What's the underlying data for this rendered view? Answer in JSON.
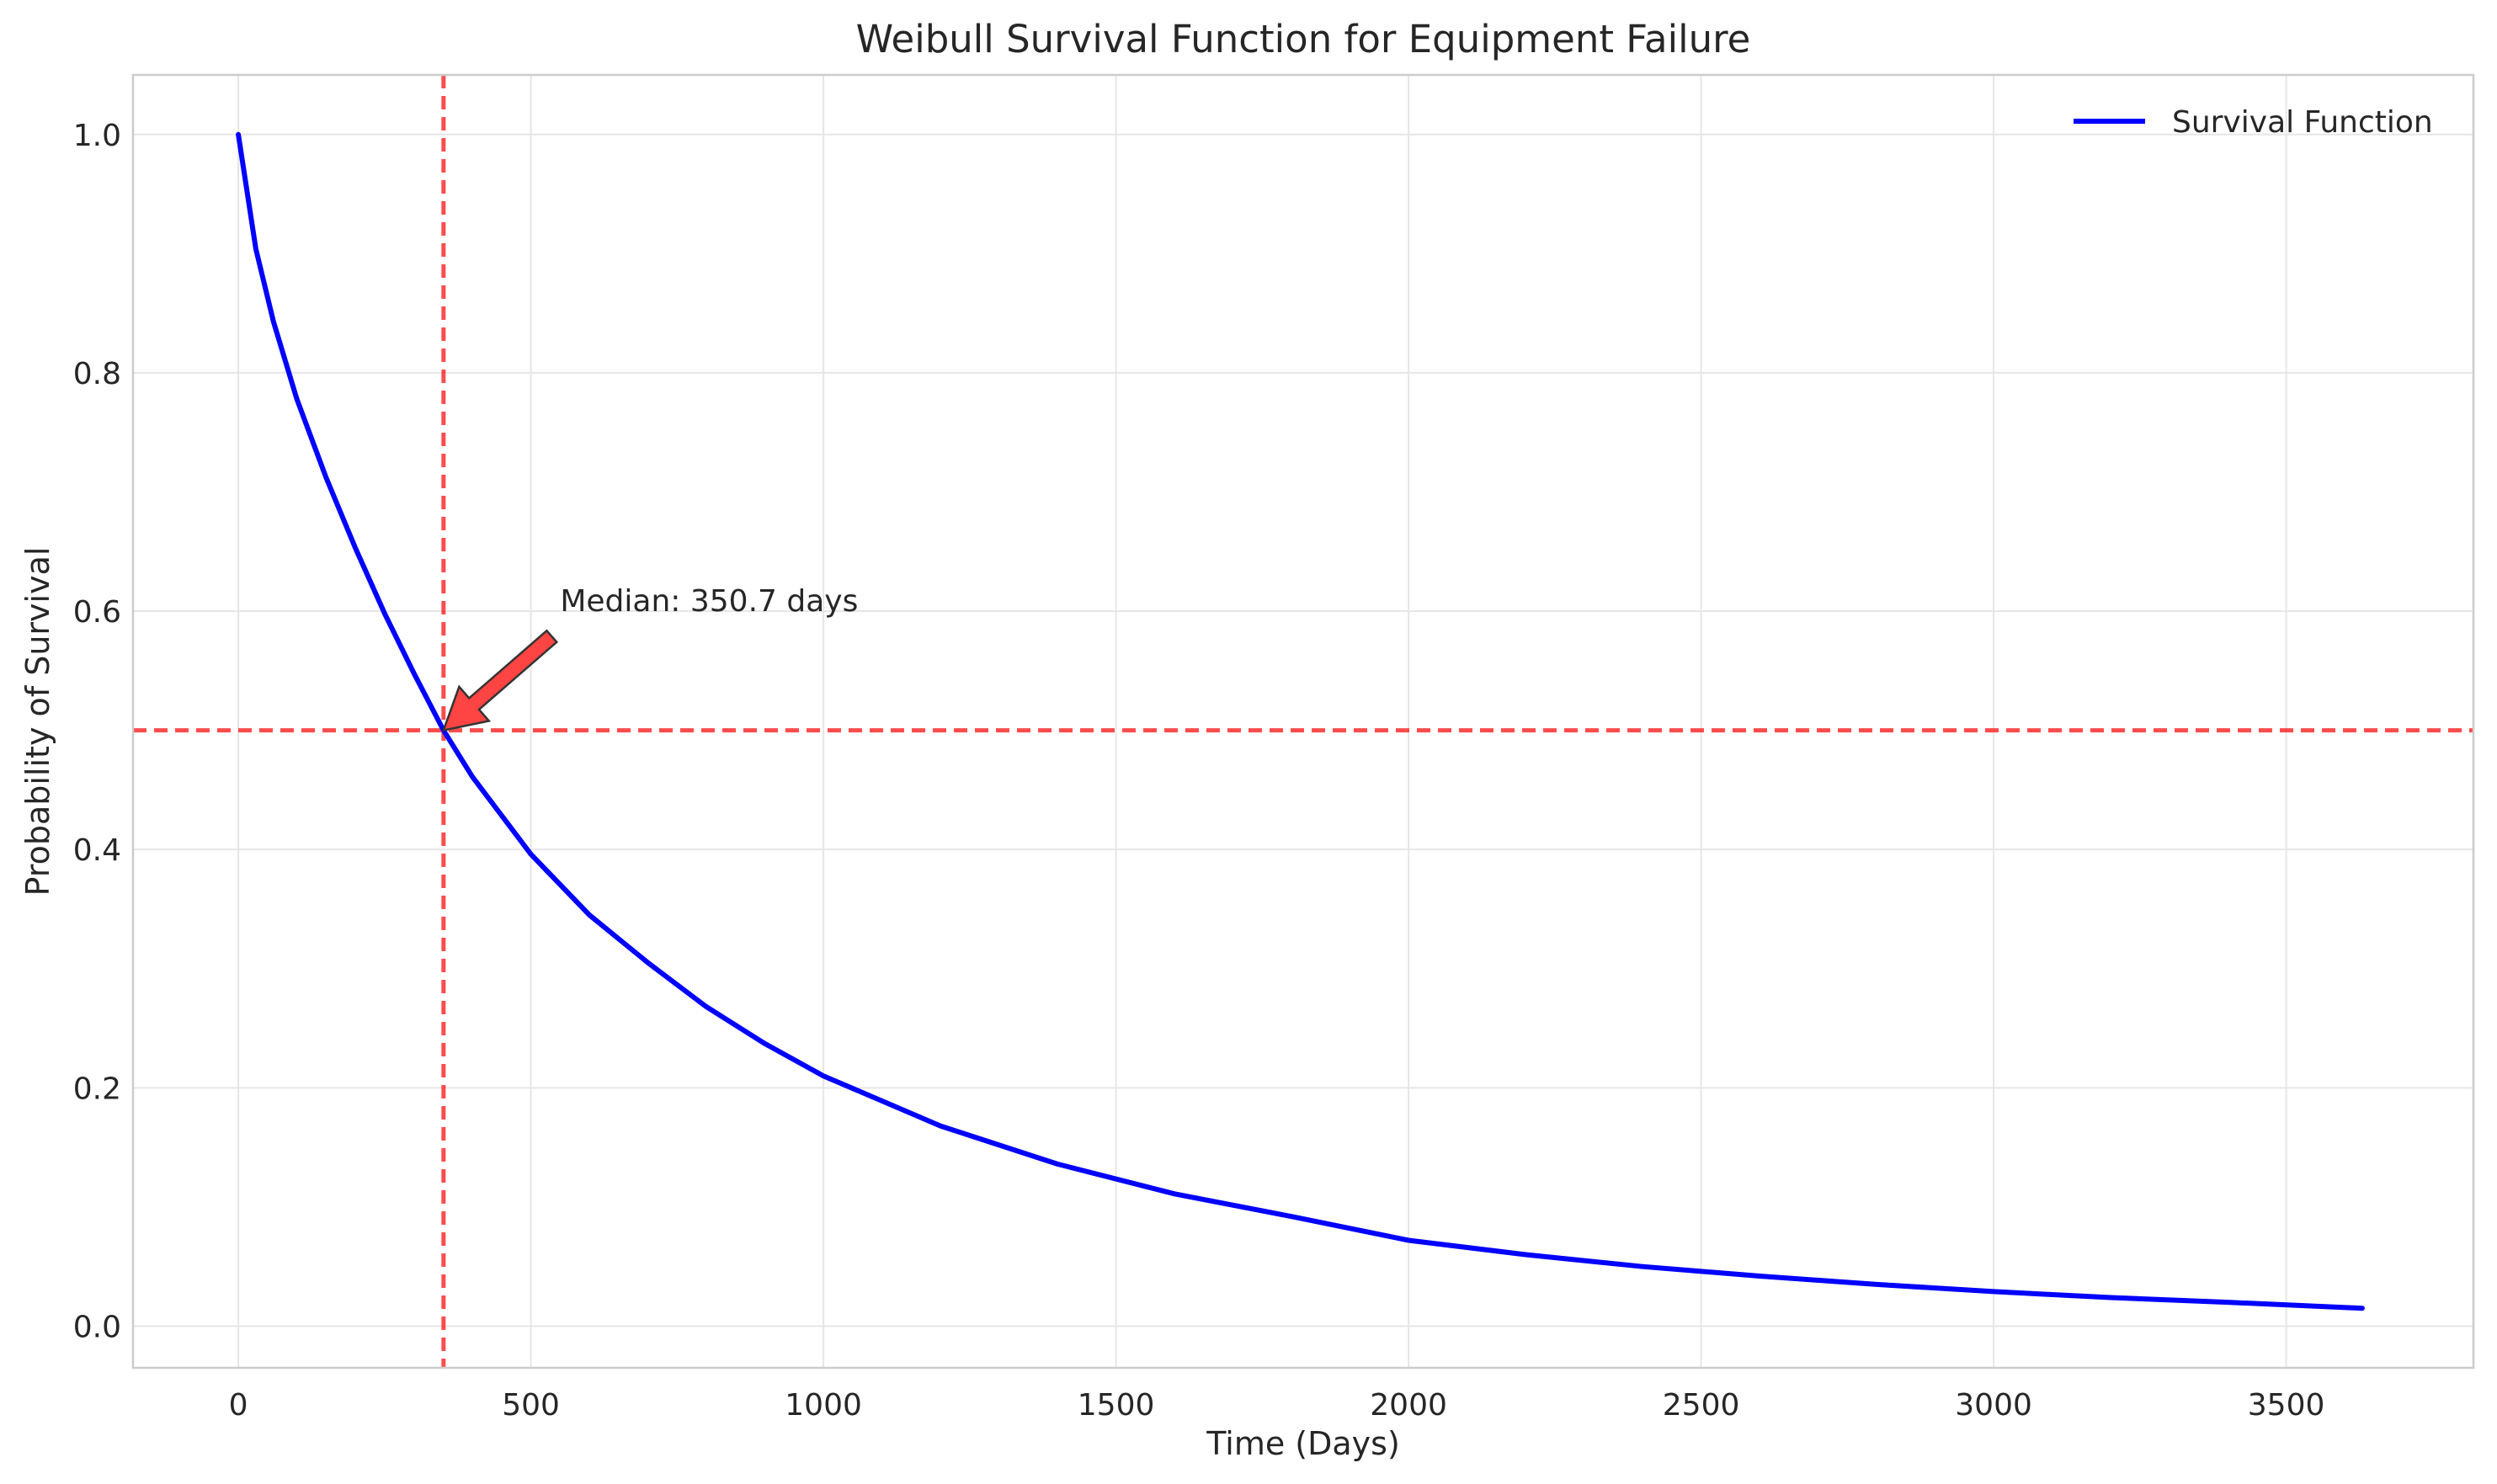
{
  "chart_data": {
    "type": "line",
    "title": "Weibull Survival Function for Equipment Failure",
    "xlabel": "Time (Days)",
    "ylabel": "Probability of Survival",
    "xlim": [
      -180,
      3820
    ],
    "ylim": [
      -0.035,
      1.05
    ],
    "xticks": [
      0,
      500,
      1000,
      1500,
      2000,
      2500,
      3000,
      3500
    ],
    "yticks": [
      0.0,
      0.2,
      0.4,
      0.6,
      0.8,
      1.0
    ],
    "x_tick_labels": [
      "0",
      "500",
      "1000",
      "1500",
      "2000",
      "2500",
      "3000",
      "3500"
    ],
    "y_tick_labels": [
      "0.0",
      "0.2",
      "0.4",
      "0.6",
      "0.8",
      "1.0"
    ],
    "grid": true,
    "legend_position": "top-right",
    "series": [
      {
        "name": "Survival Function",
        "color": "#0000ff",
        "x": [
          0,
          30,
          60,
          100,
          150,
          200,
          250,
          300,
          350.7,
          400,
          500,
          600,
          700,
          800,
          900,
          1000,
          1200,
          1400,
          1600,
          1800,
          2000,
          2200,
          2400,
          2600,
          2800,
          3000,
          3200,
          3400,
          3630
        ],
        "y": [
          1.0,
          0.904,
          0.843,
          0.778,
          0.712,
          0.653,
          0.598,
          0.548,
          0.5,
          0.461,
          0.396,
          0.345,
          0.305,
          0.268,
          0.237,
          0.21,
          0.168,
          0.136,
          0.111,
          0.092,
          0.072,
          0.06,
          0.05,
          0.042,
          0.035,
          0.029,
          0.024,
          0.02,
          0.015
        ]
      }
    ],
    "reference_lines": [
      {
        "orientation": "vertical",
        "value": 350.7,
        "color": "#ff0000",
        "style": "dashed"
      },
      {
        "orientation": "horizontal",
        "value": 0.5,
        "color": "#ff0000",
        "style": "dashed"
      }
    ],
    "annotation": {
      "text": "Median: 350.7 days",
      "point": [
        350.7,
        0.5
      ],
      "text_position": [
        550,
        0.6
      ],
      "arrow_color": "#ff4444"
    }
  }
}
